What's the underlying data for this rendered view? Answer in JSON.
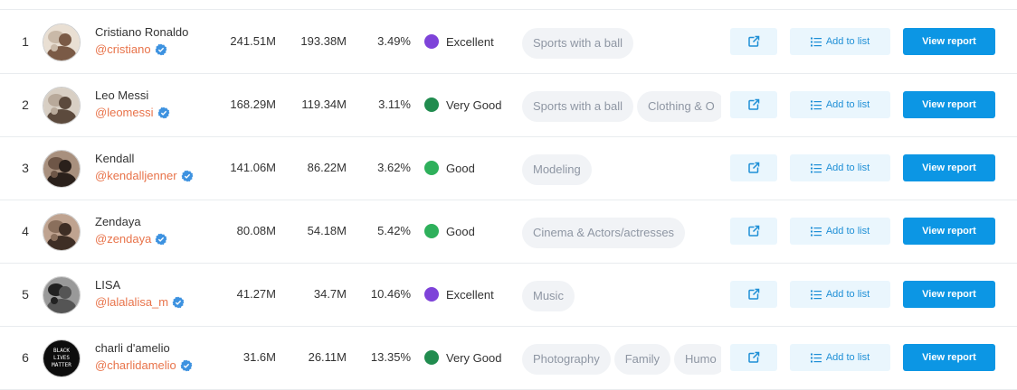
{
  "colors": {
    "excellent": "#7e43d9",
    "very_good": "#218c4f",
    "good": "#2eb05b",
    "handle": "#e8734a",
    "accent": "#0c96e4",
    "verified": "#3d92e0"
  },
  "actions": {
    "add_to_list_label": "Add to list",
    "view_report_label": "View report"
  },
  "rows": [
    {
      "rank": "1",
      "name": "Cristiano Ronaldo",
      "handle": "@cristiano",
      "followers": "241.51M",
      "likes": "193.38M",
      "er": "3.49%",
      "quality": "Excellent",
      "tags": [
        "Sports with a ball"
      ]
    },
    {
      "rank": "2",
      "name": "Leo Messi",
      "handle": "@leomessi",
      "followers": "168.29M",
      "likes": "119.34M",
      "er": "3.11%",
      "quality": "Very Good",
      "tags": [
        "Sports with a ball",
        "Clothing & O"
      ]
    },
    {
      "rank": "3",
      "name": "Kendall",
      "handle": "@kendalljenner",
      "followers": "141.06M",
      "likes": "86.22M",
      "er": "3.62%",
      "quality": "Good",
      "tags": [
        "Modeling"
      ]
    },
    {
      "rank": "4",
      "name": "Zendaya",
      "handle": "@zendaya",
      "followers": "80.08M",
      "likes": "54.18M",
      "er": "5.42%",
      "quality": "Good",
      "tags": [
        "Cinema & Actors/actresses"
      ]
    },
    {
      "rank": "5",
      "name": "LISA",
      "handle": "@lalalalisa_m",
      "followers": "41.27M",
      "likes": "34.7M",
      "er": "10.46%",
      "quality": "Excellent",
      "tags": [
        "Music"
      ]
    },
    {
      "rank": "6",
      "name": "charli d'amelio",
      "handle": "@charlidamelio",
      "followers": "31.6M",
      "likes": "26.11M",
      "er": "13.35%",
      "quality": "Very Good",
      "tags": [
        "Photography",
        "Family",
        "Humo"
      ]
    }
  ],
  "avatar_text_row6": [
    "BLACK",
    "LIVES",
    "MATTER"
  ]
}
